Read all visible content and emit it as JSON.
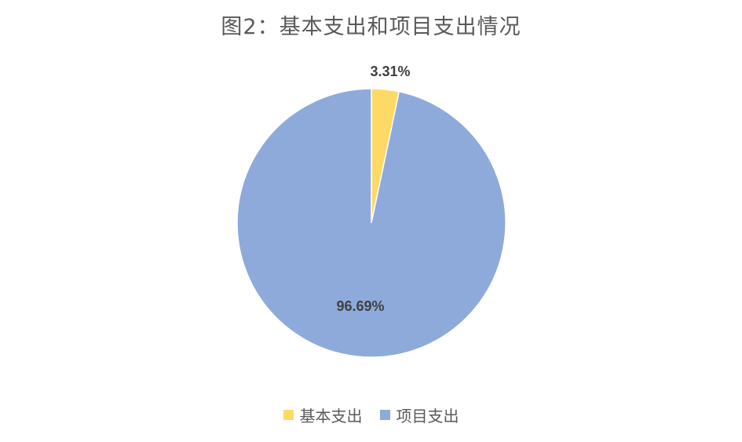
{
  "chart_data": {
    "type": "pie",
    "title": "图2：基本支出和项目支出情况",
    "categories": [
      "基本支出",
      "项目支出"
    ],
    "values": [
      3.31,
      96.69
    ],
    "value_labels": [
      "3.31%",
      "96.69%"
    ],
    "colors": [
      "#FFD966",
      "#8EAADB"
    ],
    "legend_position": "bottom"
  }
}
